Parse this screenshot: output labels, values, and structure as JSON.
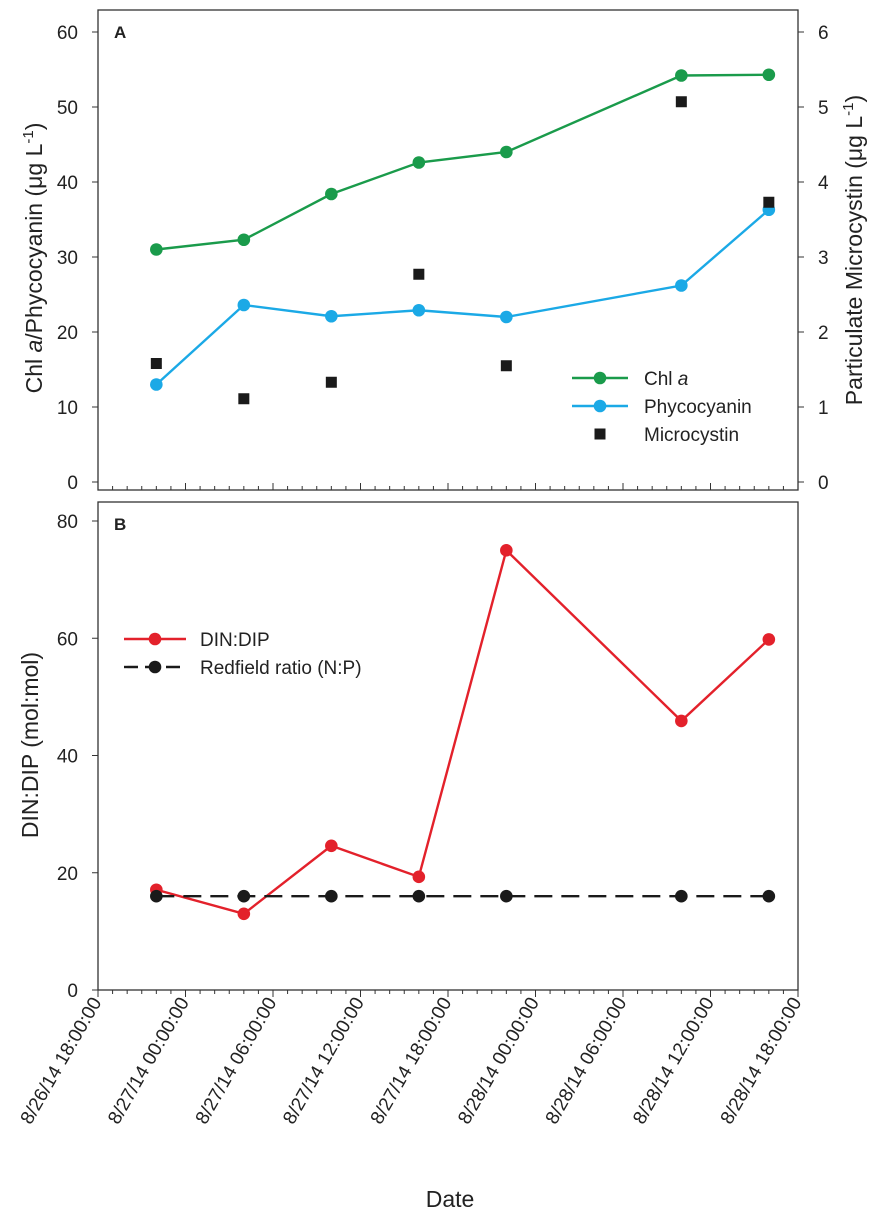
{
  "figure": {
    "xlabel": "Date"
  },
  "chart_data": [
    {
      "type": "line",
      "panel_label": "A",
      "ylabel_left_parts": [
        "Chl ",
        "a",
        "/Phycocyanin (",
        "μ",
        "g L",
        "-1",
        ")"
      ],
      "ylabel_right_parts": [
        "Particulate Microcystin (",
        "μ",
        "g L",
        "-1",
        ")"
      ],
      "ylim": [
        0,
        60
      ],
      "y_ticks": [
        "0",
        "10",
        "20",
        "30",
        "40",
        "50",
        "60"
      ],
      "ylim_right": [
        0,
        6
      ],
      "y_ticks_right": [
        "0",
        "1",
        "2",
        "3",
        "4",
        "5",
        "6"
      ],
      "x": [
        "8/26/14 22:00",
        "8/27/14 04:00",
        "8/27/14 10:00",
        "8/27/14 16:00",
        "8/27/14 22:00",
        "8/28/14 10:00",
        "8/28/14 16:00"
      ],
      "series": [
        {
          "name_parts": [
            "Chl ",
            "a"
          ],
          "axis": "left",
          "marker": "circle",
          "color": "#1a9b4b",
          "values": [
            31,
            32.3,
            38.4,
            42.6,
            44,
            54.2,
            54.3
          ]
        },
        {
          "name": "Phycocyanin",
          "axis": "left",
          "marker": "circle",
          "color": "#1ba9e6",
          "values": [
            13,
            23.6,
            22.1,
            22.9,
            22,
            26.2,
            36.3
          ]
        },
        {
          "name": "Microcystin",
          "axis": "right",
          "marker": "square",
          "color": "#1a1a1a",
          "line": false,
          "values": [
            1.58,
            1.11,
            1.33,
            2.77,
            1.55,
            5.07,
            3.73
          ]
        }
      ],
      "legend_position": "right"
    },
    {
      "type": "line",
      "panel_label": "B",
      "ylabel": "DIN:DIP (mol:mol)",
      "ylim": [
        0,
        80
      ],
      "y_ticks": [
        "0",
        "20",
        "40",
        "60",
        "80"
      ],
      "x": [
        "8/26/14 22:00",
        "8/27/14 04:00",
        "8/27/14 10:00",
        "8/27/14 16:00",
        "8/27/14 22:00",
        "8/28/14 10:00",
        "8/28/14 16:00"
      ],
      "series": [
        {
          "name": "DIN:DIP",
          "marker": "circle",
          "color": "#e3212b",
          "dash": "solid",
          "values": [
            17.1,
            13,
            24.6,
            19.3,
            75,
            45.9,
            59.8
          ]
        },
        {
          "name": "Redfield ratio (N:P)",
          "marker": "circle",
          "color": "#1a1a1a",
          "dash": "dashed",
          "values": [
            16,
            16,
            16,
            16,
            16,
            16,
            16
          ]
        }
      ],
      "legend_position": "top-left"
    }
  ],
  "x_axis": {
    "range": [
      "8/26/14 18:00",
      "8/28/14 18:00"
    ],
    "major_tick_labels": [
      "8/26/14 18:00:00",
      "8/27/14 00:00:00",
      "8/27/14 06:00:00",
      "8/27/14 12:00:00",
      "8/27/14 18:00:00",
      "8/28/14 00:00:00",
      "8/28/14 06:00:00",
      "8/28/14 12:00:00",
      "8/28/14 18:00:00"
    ],
    "minor_tick_interval_hours": 1
  }
}
